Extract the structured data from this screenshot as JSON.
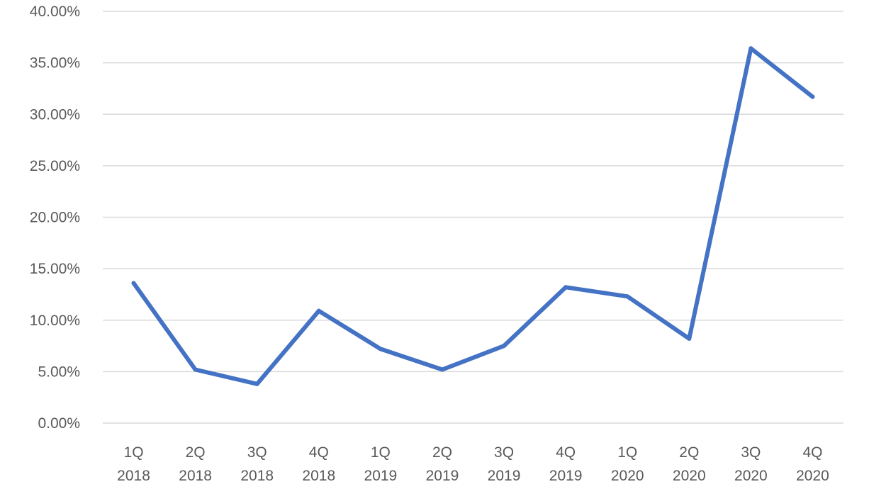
{
  "chart_data": {
    "type": "line",
    "title": "",
    "xlabel": "",
    "ylabel": "",
    "categories": [
      [
        "1Q",
        "2018"
      ],
      [
        "2Q",
        "2018"
      ],
      [
        "3Q",
        "2018"
      ],
      [
        "4Q",
        "2018"
      ],
      [
        "1Q",
        "2019"
      ],
      [
        "2Q",
        "2019"
      ],
      [
        "3Q",
        "2019"
      ],
      [
        "4Q",
        "2019"
      ],
      [
        "1Q",
        "2020"
      ],
      [
        "2Q",
        "2020"
      ],
      [
        "3Q",
        "2020"
      ],
      [
        "4Q",
        "2020"
      ]
    ],
    "series": [
      {
        "values": [
          13.6,
          5.2,
          3.8,
          10.9,
          7.2,
          5.2,
          7.5,
          13.2,
          12.3,
          8.2,
          36.4,
          31.7
        ],
        "color": "#4472c4"
      }
    ],
    "ylim": [
      0,
      40
    ],
    "yticks": [
      "0.00%",
      "5.00%",
      "10.00%",
      "15.00%",
      "20.00%",
      "25.00%",
      "30.00%",
      "35.00%",
      "40.00%"
    ],
    "grid": true,
    "legend": "none"
  }
}
